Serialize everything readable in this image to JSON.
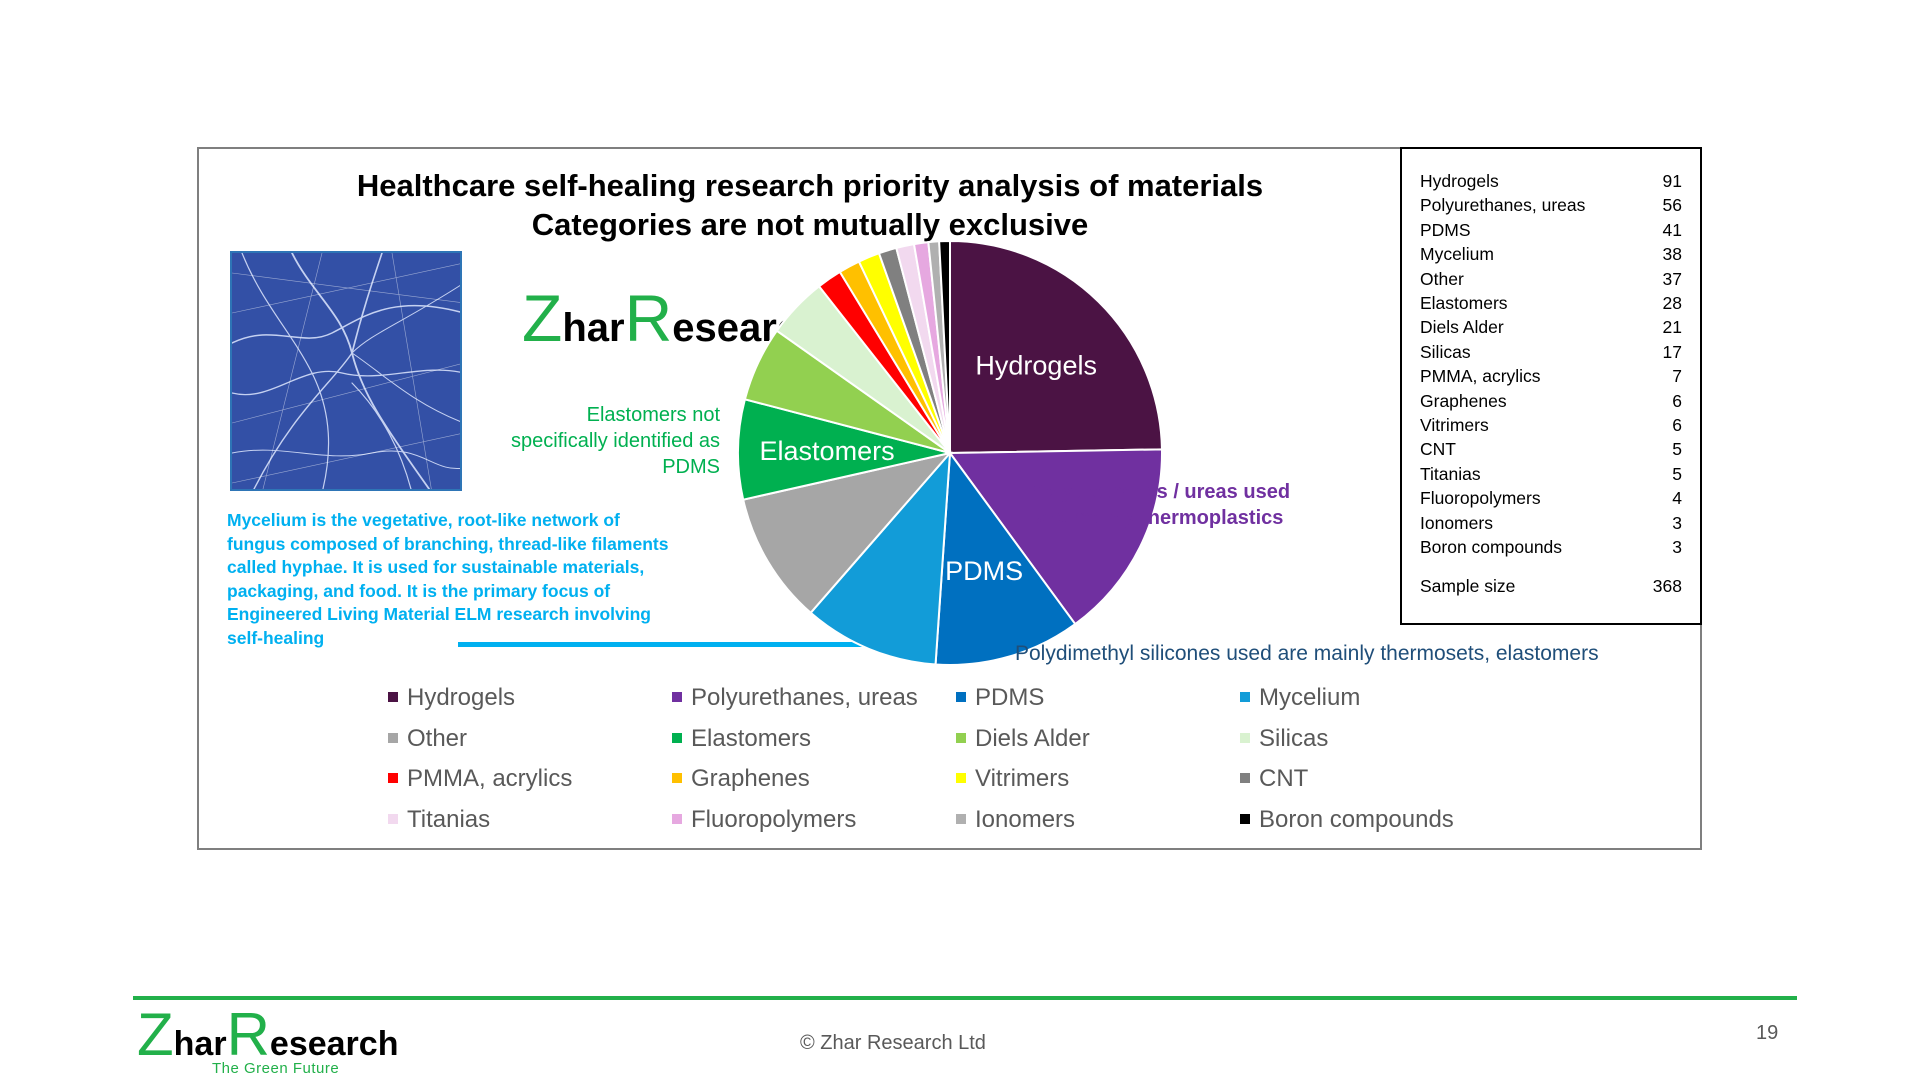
{
  "chart_data": {
    "type": "pie",
    "title": "Healthcare self-healing research priority analysis of materials",
    "subtitle": "Categories are not mutually exclusive",
    "categories": [
      "Hydrogels",
      "Polyurethanes, ureas",
      "PDMS",
      "Mycelium",
      "Other",
      "Elastomers",
      "Diels Alder",
      "Silicas",
      "PMMA, acrylics",
      "Graphenes",
      "Vitrimers",
      "CNT",
      "Titanias",
      "Fluoropolymers",
      "Ionomers",
      "Boron compounds"
    ],
    "values": [
      91,
      56,
      41,
      38,
      37,
      28,
      21,
      17,
      7,
      6,
      6,
      5,
      5,
      4,
      3,
      3
    ],
    "colors": [
      "#4b1344",
      "#7030a0",
      "#0070c0",
      "#129cd8",
      "#a6a6a6",
      "#00b050",
      "#92d050",
      "#d9f2d0",
      "#ff0000",
      "#ffc000",
      "#ffff00",
      "#808080",
      "#f2d9ef",
      "#e6a8e0",
      "#b0b0b0",
      "#000000"
    ],
    "slice_labels": [
      "Hydrogels",
      "",
      "PDMS",
      "",
      "",
      "Elastomers",
      "",
      "",
      "",
      "",
      "",
      "",
      "",
      "",
      "",
      ""
    ],
    "sample_size_label": "Sample size",
    "sample_size": 368,
    "legend_placement": "bottom"
  },
  "table_rows": [
    {
      "label": "Hydrogels",
      "value": "91"
    },
    {
      "label": "Polyurethanes, ureas",
      "value": "56"
    },
    {
      "label": "PDMS",
      "value": "41"
    },
    {
      "label": "Mycelium",
      "value": "38"
    },
    {
      "label": "Other",
      "value": "37"
    },
    {
      "label": "Elastomers",
      "value": "28"
    },
    {
      "label": "Diels Alder",
      "value": "21"
    },
    {
      "label": "Silicas",
      "value": "17"
    },
    {
      "label": "PMMA, acrylics",
      "value": "7"
    },
    {
      "label": "Graphenes",
      "value": "6"
    },
    {
      "label": "Vitrimers",
      "value": "6"
    },
    {
      "label": "CNT",
      "value": "5"
    },
    {
      "label": "Titanias",
      "value": "5"
    },
    {
      "label": "Fluoropolymers",
      "value": "4"
    },
    {
      "label": "Ionomers",
      "value": "3"
    },
    {
      "label": "Boron compounds",
      "value": "3"
    }
  ],
  "table_sample": {
    "label": "Sample size",
    "value": "368"
  },
  "annotations": {
    "elastomers": "Elastomers not specifically identified as PDMS",
    "mycelium": "Mycelium is the vegetative, root-like network of fungus composed of branching, thread-like filaments called hyphae. It is used for sustainable materials, packaging, and food. It is the primary focus of Engineered Living Material ELM research involving self-healing",
    "polyurethanes_line1": "Polyurethanes / ureas used",
    "polyurethanes_line2": "are mainly thermoplastics",
    "pdms": "Polydimethyl silicones used are mainly thermosets, elastomers"
  },
  "logo": {
    "z": "Z",
    "har": "har",
    "r": "R",
    "esearch": "esearch"
  },
  "footer": {
    "copyright": "© Zhar Research Ltd",
    "page_number": "19",
    "tagline": "The Green Future"
  },
  "photo_icon": "mycelium-photo"
}
